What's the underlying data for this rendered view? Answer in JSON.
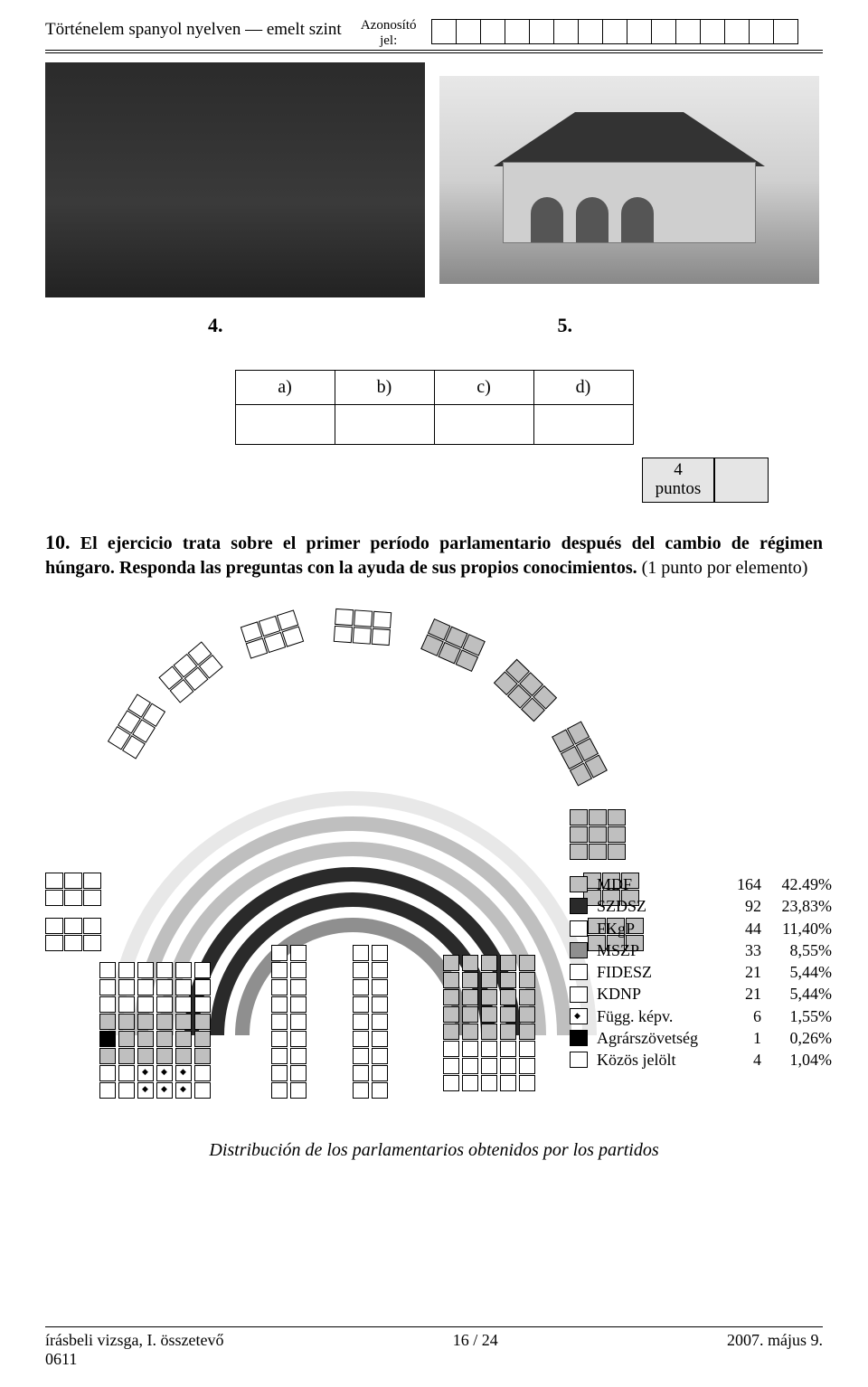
{
  "header": {
    "title_left": "Történelem spanyol nyelven — emelt szint",
    "id_label_top": "Azonosító",
    "id_label_bottom": "jel:",
    "id_cells": 15
  },
  "photo_numbers": {
    "left": "4.",
    "right": "5."
  },
  "answer_grid": {
    "a": "a)",
    "b": "b)",
    "c": "c)",
    "d": "d)"
  },
  "score": {
    "value": "4",
    "label": "puntos"
  },
  "question10": {
    "number": "10.",
    "sentence1_bold": "El ejercicio trata sobre el primer período parlamentario después del cambio de régimen húngaro.",
    "sentence2_bold": "Responda las preguntas con la ayuda de sus propios conocimientos.",
    "sentence2_tail": " (1 punto por elemento)"
  },
  "parliament": {
    "type": "semicircle-seat-chart",
    "legend": [
      {
        "name": "MDF",
        "seats": 164,
        "pct": "42.49%",
        "fill": "#bfbfbf",
        "pattern": "solid"
      },
      {
        "name": "SZDSZ",
        "seats": 92,
        "pct": "23,83%",
        "fill": "#2a2a2a",
        "pattern": "solid"
      },
      {
        "name": "FKgP",
        "seats": 44,
        "pct": "11,40%",
        "fill": "#ffffff",
        "pattern": "stripes"
      },
      {
        "name": "MSZP",
        "seats": 33,
        "pct": "8,55%",
        "fill": "#8f8f8f",
        "pattern": "solid"
      },
      {
        "name": "FIDESZ",
        "seats": 21,
        "pct": "5,44%",
        "fill": "#ffffff",
        "pattern": "solid"
      },
      {
        "name": "KDNP",
        "seats": 21,
        "pct": "5,44%",
        "fill": "#ffffff",
        "pattern": "hatch"
      },
      {
        "name": "Függ. képv.",
        "seats": 6,
        "pct": "1,55%",
        "fill": "#ffffff",
        "pattern": "diamond"
      },
      {
        "name": "Agrárszövetség",
        "seats": 1,
        "pct": "0,26%",
        "fill": "#000000",
        "pattern": "solid"
      },
      {
        "name": "Közös jelölt",
        "seats": 4,
        "pct": "1,04%",
        "fill": "#ffffff",
        "pattern": "dots"
      }
    ],
    "arc_colors_outer_to_inner": [
      "#e8e8e8",
      "#bfbfbf",
      "#bfbfbf",
      "#2a2a2a",
      "#2a2a2a",
      "#8f8f8f",
      "#ffffff"
    ],
    "caption": "Distribución de los parlamentarios obtenidos por los partidos"
  },
  "footer": {
    "left_line1": "írásbeli vizsga, I. összetevő",
    "left_line2": "0611",
    "center": "16 / 24",
    "right": "2007. május 9."
  },
  "colors": {
    "text": "#000000",
    "background": "#ffffff",
    "grid_gray": "#e5e5e5"
  }
}
